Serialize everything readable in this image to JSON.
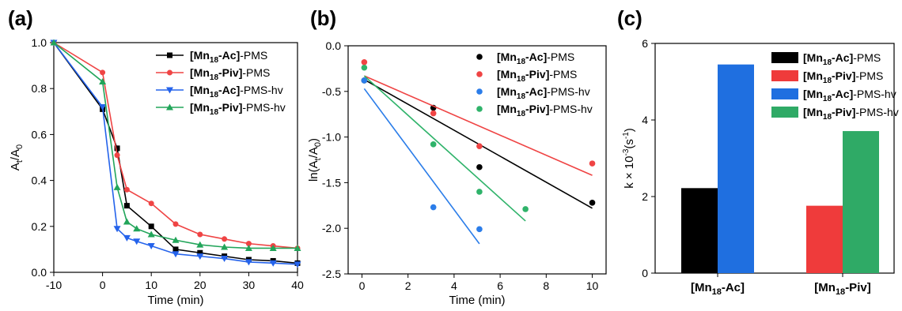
{
  "chart_data": [
    {
      "panel_label": "(a)",
      "type": "line",
      "xlabel": "Time (min)",
      "ylabel": {
        "main": "A",
        "sub1": "t",
        "mid": "/A",
        "sub2": "0"
      },
      "xlim": [
        -10,
        40
      ],
      "ylim": [
        0,
        1.0
      ],
      "xticks": [
        -10,
        0,
        10,
        20,
        30,
        40
      ],
      "yticks": [
        0.0,
        0.2,
        0.4,
        0.6,
        0.8,
        1.0
      ],
      "legend_position": "top-right",
      "series": [
        {
          "name": {
            "prefix": "[Mn",
            "sub": "18",
            "suffix": "-Ac]",
            "tail": "-PMS"
          },
          "color": "#000000",
          "marker": "square",
          "x": [
            -10,
            0,
            3,
            5,
            10,
            15,
            20,
            25,
            30,
            35,
            40
          ],
          "y": [
            1.0,
            0.71,
            0.54,
            0.29,
            0.2,
            0.1,
            0.085,
            0.07,
            0.055,
            0.05,
            0.04
          ]
        },
        {
          "name": {
            "prefix": "[Mn",
            "sub": "18",
            "suffix": "-Piv]",
            "tail": "-PMS"
          },
          "color": "#ef4444",
          "marker": "circle",
          "x": [
            -10,
            0,
            3,
            5,
            10,
            15,
            20,
            25,
            30,
            35,
            40
          ],
          "y": [
            1.0,
            0.87,
            0.51,
            0.36,
            0.3,
            0.21,
            0.165,
            0.145,
            0.125,
            0.115,
            0.105
          ]
        },
        {
          "name": {
            "prefix": "[Mn",
            "sub": "18",
            "suffix": "-Ac]",
            "tail": "-PMS-hv"
          },
          "color": "#2563eb",
          "marker": "triangle-down",
          "x": [
            -10,
            0,
            3,
            5,
            7,
            10,
            15,
            20,
            25,
            30,
            35,
            40
          ],
          "y": [
            1.0,
            0.72,
            0.19,
            0.15,
            0.135,
            0.115,
            0.08,
            0.07,
            0.06,
            0.045,
            0.04,
            0.035
          ]
        },
        {
          "name": {
            "prefix": "[Mn",
            "sub": "18",
            "suffix": "-Piv]",
            "tail": "-PMS-hv"
          },
          "color": "#22a55a",
          "marker": "triangle-up",
          "x": [
            -10,
            0,
            3,
            5,
            7,
            10,
            15,
            20,
            25,
            30,
            35,
            40
          ],
          "y": [
            1.0,
            0.83,
            0.37,
            0.22,
            0.19,
            0.165,
            0.14,
            0.12,
            0.11,
            0.105,
            0.105,
            0.105
          ]
        }
      ]
    },
    {
      "panel_label": "(b)",
      "type": "scatter",
      "xlabel": "Time (min)",
      "ylabel": {
        "main": "ln(A",
        "sub1": "t",
        "mid": "/A",
        "sub2": "0",
        "end": ")"
      },
      "xlim": [
        -0.6,
        10.6
      ],
      "ylim": [
        -2.5,
        0.0
      ],
      "xticks": [
        0,
        2,
        4,
        6,
        8,
        10
      ],
      "yticks": [
        0.0,
        -0.5,
        -1.0,
        -1.5,
        -2.0,
        -2.5
      ],
      "legend_position": "top-right",
      "series": [
        {
          "name": {
            "prefix": "[Mn",
            "sub": "18",
            "suffix": "-Ac]",
            "tail": "-PMS"
          },
          "color": "#000000",
          "x": [
            0.1,
            3.1,
            5.1,
            10.0
          ],
          "y": [
            -0.38,
            -0.68,
            -1.33,
            -1.72
          ],
          "fit": {
            "x": [
              0.1,
              10.0
            ],
            "y": [
              -0.37,
              -1.78
            ]
          }
        },
        {
          "name": {
            "prefix": "[Mn",
            "sub": "18",
            "suffix": "-Piv]",
            "tail": "-PMS"
          },
          "color": "#ef4444",
          "x": [
            0.1,
            3.1,
            5.1,
            10.0
          ],
          "y": [
            -0.18,
            -0.74,
            -1.1,
            -1.29
          ],
          "fit": {
            "x": [
              0.1,
              10.0
            ],
            "y": [
              -0.33,
              -1.42
            ]
          }
        },
        {
          "name": {
            "prefix": "[Mn",
            "sub": "18",
            "suffix": "-Ac]",
            "tail": "-PMS-hv"
          },
          "color": "#2b7de9",
          "x": [
            0.1,
            3.1,
            5.1
          ],
          "y": [
            -0.38,
            -1.77,
            -2.01
          ],
          "fit": {
            "x": [
              0.1,
              5.1
            ],
            "y": [
              -0.47,
              -2.17
            ]
          }
        },
        {
          "name": {
            "prefix": "[Mn",
            "sub": "18",
            "suffix": "-Piv]",
            "tail": "-PMS-hv"
          },
          "color": "#2fb36a",
          "x": [
            0.1,
            3.1,
            5.1,
            7.1
          ],
          "y": [
            -0.24,
            -1.08,
            -1.6,
            -1.79
          ],
          "fit": {
            "x": [
              0.1,
              7.1
            ],
            "y": [
              -0.33,
              -1.92
            ]
          }
        }
      ]
    },
    {
      "panel_label": "(c)",
      "type": "bar",
      "ylabel": {
        "main": "k × 10",
        "sup": "-3",
        "end": "(s",
        "sup2": "-1",
        "end2": ")"
      },
      "ylim": [
        0,
        6
      ],
      "yticks": [
        0,
        2,
        4,
        6
      ],
      "categories": [
        {
          "prefix": "[Mn",
          "sub": "18",
          "suffix": "-Ac]"
        },
        {
          "prefix": "[Mn",
          "sub": "18",
          "suffix": "-Piv]"
        }
      ],
      "legend_position": "top-right",
      "series": [
        {
          "name": {
            "prefix": "[Mn",
            "sub": "18",
            "suffix": "-Ac]",
            "tail": "-PMS"
          },
          "color": "#000000",
          "category": 0,
          "slot": 0,
          "value": 2.22
        },
        {
          "name": {
            "prefix": "[Mn",
            "sub": "18",
            "suffix": "-Piv]",
            "tail": "-PMS"
          },
          "color": "#ef3b3b",
          "category": 1,
          "slot": 0,
          "value": 1.76
        },
        {
          "name": {
            "prefix": "[Mn",
            "sub": "18",
            "suffix": "-Ac]",
            "tail": "-PMS-hv"
          },
          "color": "#1f6fe0",
          "category": 0,
          "slot": 1,
          "value": 5.45
        },
        {
          "name": {
            "prefix": "[Mn",
            "sub": "18",
            "suffix": "-Piv]",
            "tail": "-PMS-hv"
          },
          "color": "#2faa66",
          "category": 1,
          "slot": 1,
          "value": 3.71
        }
      ]
    }
  ]
}
